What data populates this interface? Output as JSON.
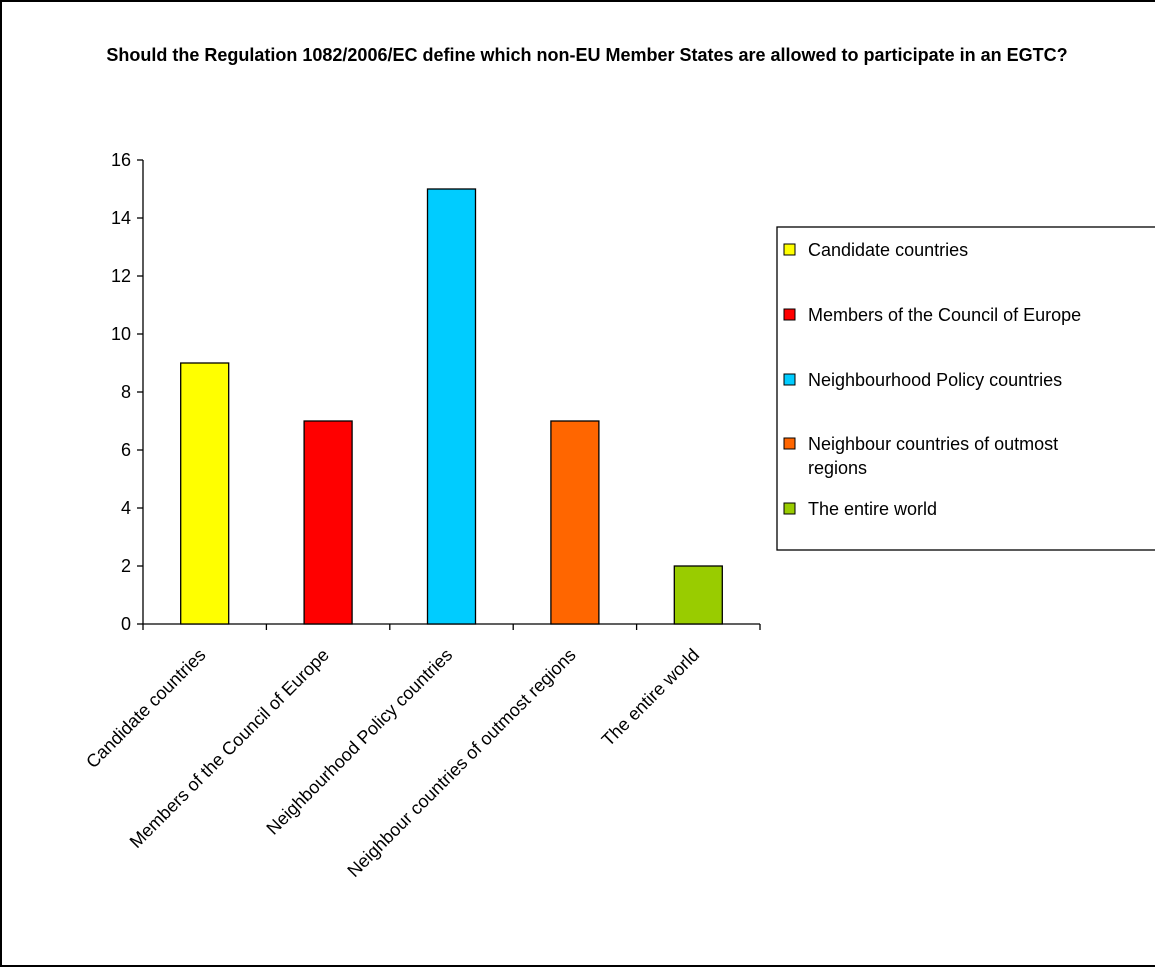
{
  "chart_data": {
    "type": "bar",
    "title": "Should the Regulation 1082/2006/EC define which non-EU Member States are allowed to participate in an EGTC?",
    "categories": [
      "Candidate countries",
      "Members of the Council of Europe",
      "Neighbourhood Policy countries",
      "Neighbour countries of outmost regions",
      "The entire world"
    ],
    "values": [
      9,
      7,
      15,
      7,
      2
    ],
    "colors": [
      "#FFFF00",
      "#FF0000",
      "#00CCFF",
      "#FF6600",
      "#99CC00"
    ],
    "legend": {
      "position": "right",
      "entries": [
        {
          "label": "Candidate countries",
          "color": "#FFFF00"
        },
        {
          "label": "Members of the Council of Europe",
          "color": "#FF0000"
        },
        {
          "label": "Neighbourhood Policy countries",
          "color": "#00CCFF"
        },
        {
          "label": "Neighbour countries of outmost regions",
          "color": "#FF6600"
        },
        {
          "label": "The entire world",
          "color": "#99CC00"
        }
      ]
    },
    "yticks": [
      0,
      2,
      4,
      6,
      8,
      10,
      12,
      14,
      16
    ],
    "ylim": [
      0,
      16
    ],
    "xlabel": "",
    "ylabel": "",
    "grid": false
  }
}
